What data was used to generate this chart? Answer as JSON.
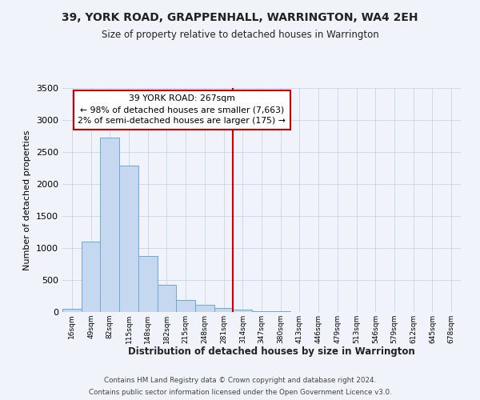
{
  "title": "39, YORK ROAD, GRAPPENHALL, WARRINGTON, WA4 2EH",
  "subtitle": "Size of property relative to detached houses in Warrington",
  "xlabel": "Distribution of detached houses by size in Warrington",
  "ylabel": "Number of detached properties",
  "bin_labels": [
    "16sqm",
    "49sqm",
    "82sqm",
    "115sqm",
    "148sqm",
    "182sqm",
    "215sqm",
    "248sqm",
    "281sqm",
    "314sqm",
    "347sqm",
    "380sqm",
    "413sqm",
    "446sqm",
    "479sqm",
    "513sqm",
    "546sqm",
    "579sqm",
    "612sqm",
    "645sqm",
    "678sqm"
  ],
  "bar_values": [
    50,
    1100,
    2730,
    2290,
    870,
    430,
    190,
    110,
    60,
    35,
    15,
    10,
    5,
    3,
    2,
    1,
    1,
    0,
    0,
    0,
    0
  ],
  "bar_color": "#c5d8f0",
  "bar_edge_color": "#6aaad4",
  "vline_x": 8.5,
  "vline_color": "#cc0000",
  "annotation_title": "39 YORK ROAD: 267sqm",
  "annotation_line2": "← 98% of detached houses are smaller (7,663)",
  "annotation_line3": "2% of semi-detached houses are larger (175) →",
  "annotation_box_color": "#cc0000",
  "annotation_fill": "#ffffff",
  "ylim": [
    0,
    3500
  ],
  "yticks": [
    0,
    500,
    1000,
    1500,
    2000,
    2500,
    3000,
    3500
  ],
  "footer_line1": "Contains HM Land Registry data © Crown copyright and database right 2024.",
  "footer_line2": "Contains public sector information licensed under the Open Government Licence v3.0.",
  "bg_color": "#f0f4fa",
  "grid_color": "#c8d4e8"
}
